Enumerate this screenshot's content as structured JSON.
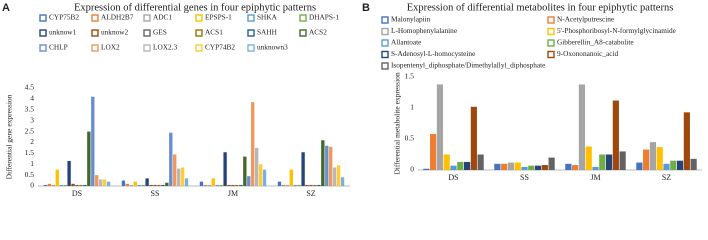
{
  "chart_data": [
    {
      "type": "bar",
      "label": "A",
      "title": "Expression of differential genes in four epiphytic patterns",
      "y_label": "Differential gene expression",
      "categories": [
        "DS",
        "SS",
        "JM",
        "SZ"
      ],
      "ylim": [
        0,
        4.5
      ],
      "yticks": [
        0,
        0.5,
        1,
        1.5,
        2,
        2.5,
        3,
        3.5,
        4,
        4.5
      ],
      "grid": false,
      "series": [
        {
          "name": "CYP75B2",
          "color": "#4472c4",
          "values": [
            0.05,
            0.25,
            0.2,
            0.2
          ]
        },
        {
          "name": "ALDH2B7",
          "color": "#ed7d31",
          "values": [
            0.1,
            0.1,
            0.05,
            0.05
          ]
        },
        {
          "name": "ADC1",
          "color": "#a5a5a5",
          "values": [
            0.05,
            0.05,
            0.05,
            0.05
          ]
        },
        {
          "name": "EPSPS-1",
          "color": "#ffc000",
          "values": [
            0.75,
            0.2,
            0.35,
            0.75
          ]
        },
        {
          "name": "SHKA",
          "color": "#5b9bd5",
          "values": [
            0.05,
            0.05,
            0.05,
            0.05
          ]
        },
        {
          "name": "DHAPS-1",
          "color": "#70ad47",
          "values": [
            0.05,
            0.05,
            0.05,
            0.05
          ]
        },
        {
          "name": "unknow1",
          "color": "#264478",
          "values": [
            1.15,
            0.35,
            1.55,
            1.55
          ]
        },
        {
          "name": "unknow2",
          "color": "#9e480e",
          "values": [
            0.1,
            0.05,
            0.05,
            0.05
          ]
        },
        {
          "name": "GES",
          "color": "#636363",
          "values": [
            0.05,
            0.05,
            0.05,
            0.05
          ]
        },
        {
          "name": "ACS1",
          "color": "#997300",
          "values": [
            0.05,
            0.05,
            0.05,
            0.05
          ]
        },
        {
          "name": "SAHH",
          "color": "#255e91",
          "values": [
            0.05,
            0.05,
            0.05,
            0.05
          ]
        },
        {
          "name": "ACS2",
          "color": "#43682b",
          "values": [
            2.5,
            0.15,
            1.35,
            2.1
          ]
        },
        {
          "name": "CHLP",
          "color": "#698ed0",
          "values": [
            4.1,
            2.45,
            0.45,
            1.85
          ]
        },
        {
          "name": "LOX2",
          "color": "#f1975a",
          "values": [
            0.5,
            1.45,
            3.85,
            1.8
          ]
        },
        {
          "name": "LOX2.3",
          "color": "#b7b7b7",
          "values": [
            0.3,
            0.8,
            1.75,
            0.85
          ]
        },
        {
          "name": "CYP74B2",
          "color": "#ffcd33",
          "values": [
            0.3,
            0.85,
            1.0,
            0.95
          ]
        },
        {
          "name": "unknown3",
          "color": "#7cafdd",
          "values": [
            0.2,
            0.35,
            0.75,
            0.4
          ]
        }
      ]
    },
    {
      "type": "bar",
      "label": "B",
      "title": "Expression of differential metabolites in four epiphytic patterns",
      "y_label": "Differential metabolite expression",
      "categories": [
        "DS",
        "SS",
        "JM",
        "SZ"
      ],
      "ylim": [
        0,
        1.5
      ],
      "yticks": [
        0,
        0.5,
        1,
        1.5
      ],
      "grid": false,
      "series": [
        {
          "name": "Malonylapiin",
          "color": "#4472c4",
          "values": [
            0.02,
            0.1,
            0.1,
            0.12
          ]
        },
        {
          "name": "N-Acetylputrescine",
          "color": "#ed7d31",
          "values": [
            0.58,
            0.1,
            0.08,
            0.33
          ]
        },
        {
          "name": "L-Homophenylalanine",
          "color": "#a5a5a5",
          "values": [
            1.38,
            0.12,
            1.38,
            0.45
          ]
        },
        {
          "name": "5'-Phosphoribosyl-N-formylglycinamide",
          "color": "#ffc000",
          "values": [
            0.25,
            0.12,
            0.38,
            0.37
          ]
        },
        {
          "name": "Allantoate",
          "color": "#5b9bd5",
          "values": [
            0.07,
            0.05,
            0.05,
            0.1
          ]
        },
        {
          "name": "Gibberellin_A8-catabolite",
          "color": "#70ad47",
          "values": [
            0.13,
            0.07,
            0.25,
            0.15
          ]
        },
        {
          "name": "S-Adenosyl-L-homocysteine",
          "color": "#264478",
          "values": [
            0.13,
            0.07,
            0.25,
            0.15
          ]
        },
        {
          "name": "9-Oxononanoic_acid",
          "color": "#9e480e",
          "values": [
            1.02,
            0.08,
            1.12,
            0.93
          ]
        },
        {
          "name": "Isopentenyl_diphosphate/Dimethylallyl_diphosphate",
          "color": "#636363",
          "values": [
            0.25,
            0.2,
            0.3,
            0.18
          ]
        }
      ]
    }
  ]
}
